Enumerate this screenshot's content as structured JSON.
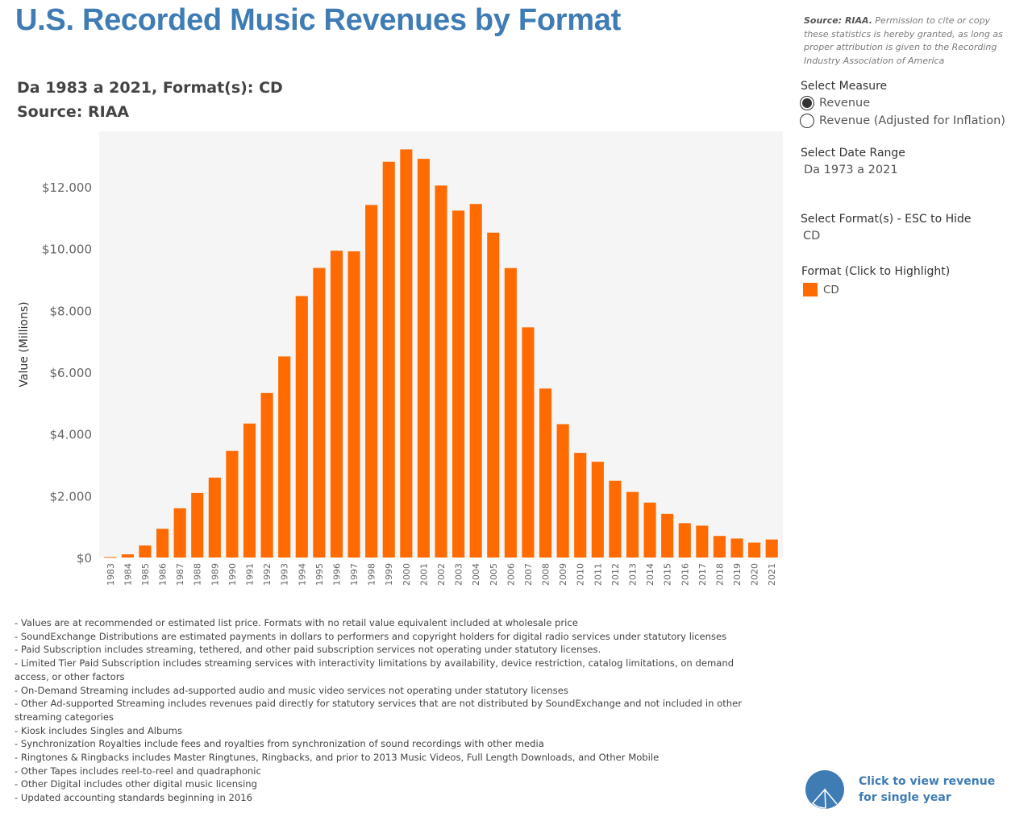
{
  "header": {
    "title": "U.S. Recorded Music Revenues by Format",
    "source_label": "Source: RIAA.",
    "source_text": " Permission to cite or copy these statistics is hereby granted, as long as proper attribution is given to the Recording Industry Association of America"
  },
  "subtitle": {
    "line1": "Da 1983 a 2021, Format(s): CD",
    "line2": "Source: RIAA"
  },
  "controls": {
    "measure_title": "Select Measure",
    "measure_options": [
      {
        "label": "Revenue",
        "checked": true
      },
      {
        "label": "Revenue (Adjusted for Inflation)",
        "checked": false
      }
    ],
    "date_range_title": "Select Date Range",
    "date_range_value": "Da 1973 a 2021",
    "format_title": "Select Format(s) - ESC to Hide",
    "format_value": "CD",
    "highlight_title": "Format (Click to Highlight)",
    "legend_label": "CD"
  },
  "colors": {
    "bar": "#ff6b00",
    "title": "#3f7cb4",
    "plot_background": "#f5f5f5"
  },
  "chart_data": {
    "type": "bar",
    "title": "",
    "xlabel": "",
    "ylabel": "Value (Millions)",
    "ylim": [
      0,
      13800
    ],
    "y_ticks": [
      0,
      2000,
      4000,
      6000,
      8000,
      10000,
      12000
    ],
    "y_tick_labels": [
      "$0",
      "$2.000",
      "$4.000",
      "$6.000",
      "$8.000",
      "$10.000",
      "$12.000"
    ],
    "grid": false,
    "categories": [
      "1983",
      "1984",
      "1985",
      "1986",
      "1987",
      "1988",
      "1989",
      "1990",
      "1991",
      "1992",
      "1993",
      "1994",
      "1995",
      "1996",
      "1997",
      "1998",
      "1999",
      "2000",
      "2001",
      "2002",
      "2003",
      "2004",
      "2005",
      "2006",
      "2007",
      "2008",
      "2009",
      "2010",
      "2011",
      "2012",
      "2013",
      "2014",
      "2015",
      "2016",
      "2017",
      "2018",
      "2019",
      "2020",
      "2021"
    ],
    "series": [
      {
        "name": "CD",
        "values": [
          17,
          103,
          390,
          930,
          1594,
          2090,
          2588,
          3452,
          4338,
          5327,
          6511,
          8465,
          9377,
          9935,
          9915,
          11416,
          12816,
          13215,
          12909,
          12044,
          11233,
          11447,
          10520,
          9372,
          7452,
          5471,
          4318,
          3389,
          3101,
          2486,
          2124,
          1779,
          1413,
          1112,
          1031,
          698,
          615,
          483,
          584
        ]
      }
    ]
  },
  "notes": [
    "- Values are at recommended or estimated list price. Formats with no retail value equivalent included at wholesale price",
    "- SoundExchange Distributions are estimated payments in dollars to performers and copyright holders for digital radio services under statutory licenses",
    "- Paid Subscription includes streaming, tethered, and other paid subscription services not operating under statutory licenses.",
    "- Limited Tier Paid Subscription includes streaming services with interactivity limitations by availability, device restriction, catalog limitations, on demand access, or other factors",
    "- On-Demand Streaming includes ad-supported audio and music video services not operating under statutory licenses",
    "- Other Ad-supported Streaming includes revenues paid directly for statutory services that are not distributed by SoundExchange and not included in other streaming categories",
    "- Kiosk includes Singles and Albums",
    "- Synchronization Royalties include fees and royalties from synchronization of sound recordings with other media",
    "- Ringtones & Ringbacks includes Master Ringtunes, Ringbacks, and prior to 2013 Music Videos, Full Length Downloads, and Other Mobile",
    "- Other Tapes includes reel-to-reel and quadraphonic",
    "- Other Digital includes other digital music licensing",
    "- Updated accounting standards beginning in 2016"
  ],
  "cta": {
    "label": "Click to view revenue for single year",
    "icon": "pie-chart-icon"
  }
}
